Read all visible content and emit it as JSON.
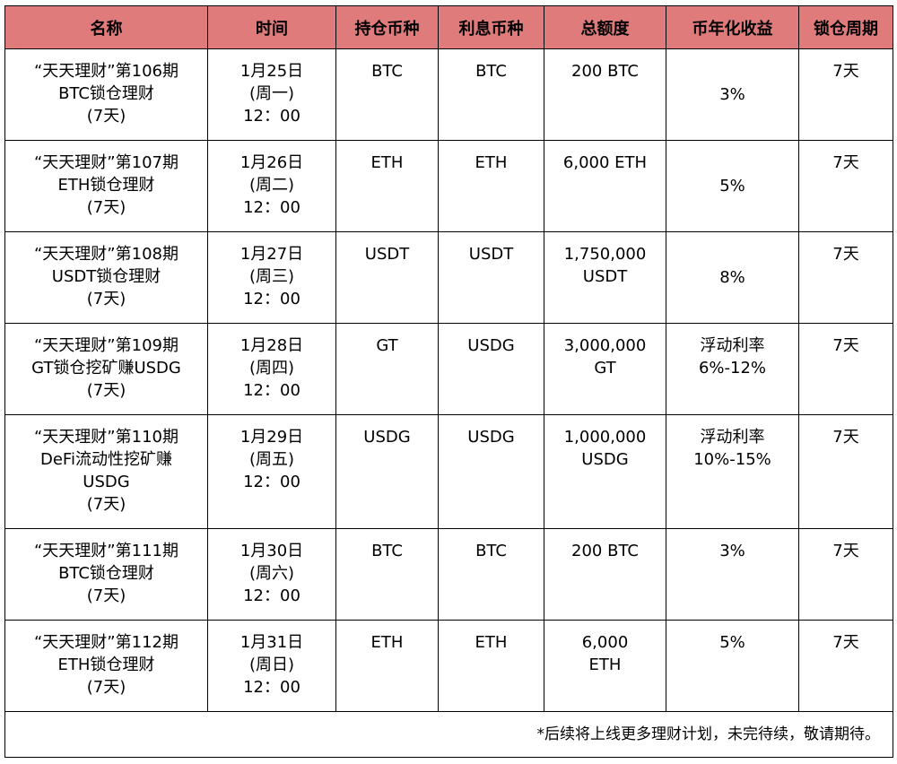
{
  "headers": [
    "名称",
    "时间",
    "持仓币种",
    "利息币种",
    "总额度",
    "币年化收益",
    "锁仓周期"
  ],
  "rows": [
    {
      "name": [
        "“天天理财”第106期",
        "BTC锁仓理财",
        "(7天)"
      ],
      "time": [
        "1月25日",
        "(周一)",
        "12：00"
      ],
      "hold": "BTC",
      "interest": "BTC",
      "amount": [
        "200 BTC"
      ],
      "yield": [
        "3%"
      ],
      "period": "7天"
    },
    {
      "name": [
        "“天天理财”第107期",
        "ETH锁仓理财",
        "(7天)"
      ],
      "time": [
        "1月26日",
        "(周二)",
        "12：00"
      ],
      "hold": "ETH",
      "interest": "ETH",
      "amount": [
        "6,000 ETH"
      ],
      "yield": [
        "5%"
      ],
      "period": "7天"
    },
    {
      "name": [
        "“天天理财”第108期",
        "USDT锁仓理财",
        "(7天)"
      ],
      "time": [
        "1月27日",
        "(周三)",
        "12：00"
      ],
      "hold": "USDT",
      "interest": "USDT",
      "amount": [
        "1,750,000",
        "USDT"
      ],
      "yield": [
        "8%"
      ],
      "period": "7天"
    },
    {
      "name": [
        "“天天理财”第109期",
        "GT锁仓挖矿赚USDG",
        "(7天)"
      ],
      "time": [
        "1月28日",
        "(周四)",
        "12：00"
      ],
      "hold": "GT",
      "interest": "USDG",
      "amount": [
        "3,000,000",
        "GT"
      ],
      "yield": [
        "浮动利率",
        "6%-12%"
      ],
      "period": "7天"
    },
    {
      "name": [
        "“天天理财”第110期",
        "DeFi流动性挖矿赚",
        "USDG",
        "(7天)"
      ],
      "time": [
        "1月29日",
        "(周五)",
        "12：00"
      ],
      "hold": "USDG",
      "interest": "USDG",
      "amount": [
        "1,000,000",
        "USDG"
      ],
      "yield": [
        "浮动利率",
        "10%-15%"
      ],
      "period": "7天"
    },
    {
      "name": [
        "“天天理财”第111期",
        "BTC锁仓理财",
        "(7天)"
      ],
      "time": [
        "1月30日",
        "(周六)",
        "12：00"
      ],
      "hold": "BTC",
      "interest": "BTC",
      "amount": [
        "200 BTC"
      ],
      "yield": [
        "3%"
      ],
      "period": "7天"
    },
    {
      "name": [
        "“天天理财”第112期",
        "ETH锁仓理财",
        "(7天)"
      ],
      "time": [
        "1月31日",
        "(周日)",
        "12：00"
      ],
      "hold": "ETH",
      "interest": "ETH",
      "amount": [
        "6,000",
        "ETH"
      ],
      "yield": [
        "5%"
      ],
      "period": "7天"
    }
  ],
  "footnote": "*后续将上线更多理财计划，未完待续，敬请期待。"
}
